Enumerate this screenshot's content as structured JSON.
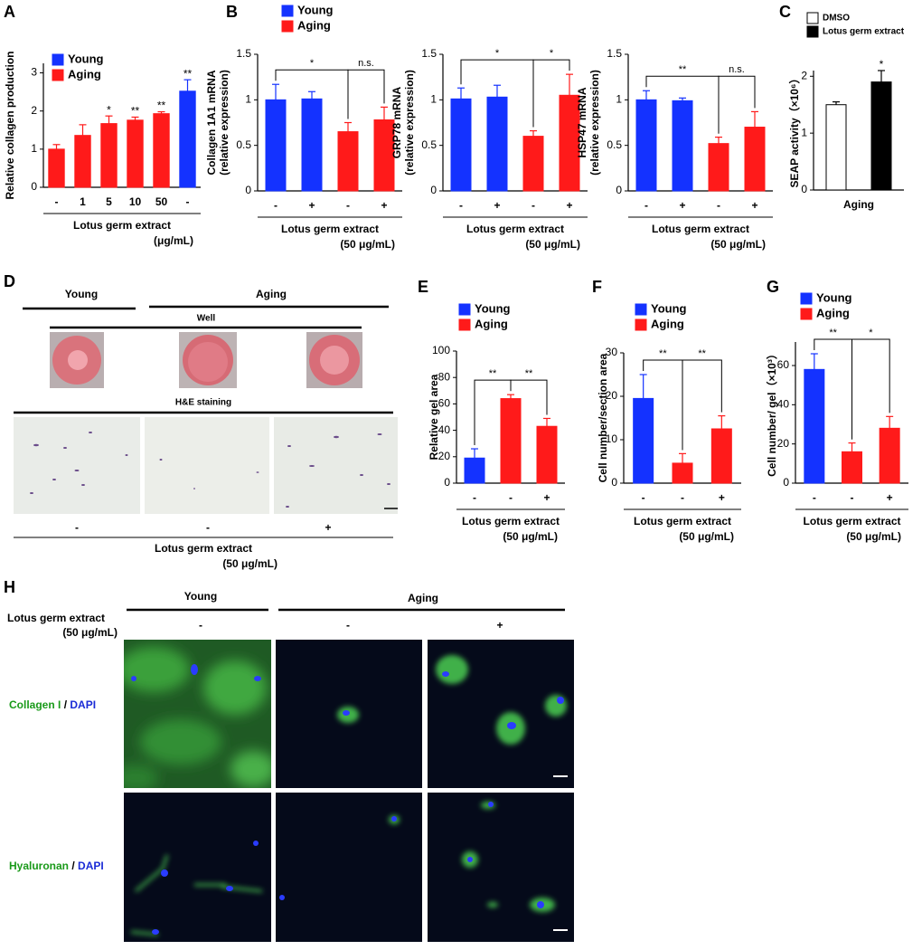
{
  "chart_data": [
    {
      "type": "bar",
      "panel": "A",
      "ylabel": "Relative collagen production",
      "xlabel": "Lotus germ extract",
      "xlabel_unit": "(μg/mL)",
      "categories": [
        "-",
        "1",
        "5",
        "10",
        "50",
        "-"
      ],
      "series": [
        {
          "name": "Young",
          "color": "#1432ff",
          "values": [
            null,
            null,
            null,
            null,
            null,
            2.52
          ],
          "errors": [
            null,
            null,
            null,
            null,
            null,
            0.3
          ],
          "sig": [
            null,
            null,
            null,
            null,
            null,
            "**"
          ]
        },
        {
          "name": "Aging",
          "color": "#ff1a1a",
          "values": [
            1.0,
            1.36,
            1.67,
            1.76,
            1.93,
            null
          ],
          "errors": [
            0.12,
            0.28,
            0.2,
            0.08,
            0.05,
            null
          ],
          "sig": [
            null,
            null,
            "*",
            "**",
            "**",
            null
          ]
        }
      ],
      "ylim": [
        0,
        3.25
      ],
      "yticks": [
        0,
        1,
        2,
        3
      ],
      "legend": "upper left"
    },
    {
      "type": "bar",
      "panel": "B",
      "ylabel": [
        "Collagen 1A1 mRNA",
        "(relative expression)"
      ],
      "xlabel": "Lotus germ extract",
      "xlabel_unit": "(50 μg/mL)",
      "categories": [
        "-",
        "+",
        "-",
        "+"
      ],
      "series": [
        {
          "name": "Young",
          "color": "#1432ff",
          "values": [
            1.0,
            1.01,
            null,
            null
          ],
          "errors": [
            0.17,
            0.08,
            null,
            null
          ]
        },
        {
          "name": "Aging",
          "color": "#ff1a1a",
          "values": [
            null,
            null,
            0.65,
            0.78
          ],
          "errors": [
            null,
            null,
            0.1,
            0.14
          ]
        }
      ],
      "ylim": [
        0,
        1.5
      ],
      "yticks": [
        0,
        0.5,
        1,
        1.5
      ],
      "comparisons": [
        {
          "from": 0,
          "to": 2,
          "label": "*"
        },
        {
          "from": 2,
          "to": 3,
          "label": "n.s."
        }
      ],
      "legend": "top"
    },
    {
      "type": "bar",
      "ylabel": [
        "GRP78  mRNA",
        "(relative expression)"
      ],
      "xlabel": "Lotus germ extract",
      "xlabel_unit": "(50 μg/mL)",
      "categories": [
        "-",
        "+",
        "-",
        "+"
      ],
      "series": [
        {
          "color": "#1432ff",
          "values": [
            1.01,
            1.03,
            null,
            null
          ],
          "errors": [
            0.12,
            0.13,
            null,
            null
          ]
        },
        {
          "color": "#ff1a1a",
          "values": [
            null,
            null,
            0.6,
            1.05
          ],
          "errors": [
            null,
            null,
            0.06,
            0.23
          ]
        }
      ],
      "ylim": [
        0,
        1.5
      ],
      "yticks": [
        0,
        0.5,
        1,
        1.5
      ],
      "comparisons": [
        {
          "from": 0,
          "to": 2,
          "label": "*"
        },
        {
          "from": 2,
          "to": 3,
          "label": "*"
        }
      ]
    },
    {
      "type": "bar",
      "ylabel": [
        "HSP47 mRNA",
        "(relative expression)"
      ],
      "xlabel": "Lotus germ extract",
      "xlabel_unit": "(50 μg/mL)",
      "categories": [
        "-",
        "+",
        "-",
        "+"
      ],
      "series": [
        {
          "color": "#1432ff",
          "values": [
            1.0,
            0.99,
            null,
            null
          ],
          "errors": [
            0.1,
            0.03,
            null,
            null
          ]
        },
        {
          "color": "#ff1a1a",
          "values": [
            null,
            null,
            0.52,
            0.7
          ],
          "errors": [
            null,
            null,
            0.07,
            0.17
          ]
        }
      ],
      "ylim": [
        0,
        1.5
      ],
      "yticks": [
        0,
        0.5,
        1,
        1.5
      ],
      "comparisons": [
        {
          "from": 0,
          "to": 2,
          "label": "**"
        },
        {
          "from": 2,
          "to": 3,
          "label": "n.s."
        }
      ]
    },
    {
      "type": "bar",
      "panel": "C",
      "ylabel": "SEAP activity（×10⁶）",
      "categories": [
        "Aging"
      ],
      "series": [
        {
          "name": "DMSO",
          "color": "#ffffff",
          "values": [
            1.5
          ],
          "errors": [
            0.05
          ]
        },
        {
          "name": "Lotus germ extract",
          "color": "#000000",
          "values": [
            1.9
          ],
          "errors": [
            0.2
          ],
          "sig": [
            "*"
          ]
        }
      ],
      "ylim": [
        0,
        2.1
      ],
      "yticks": [
        0,
        1,
        2
      ],
      "legend": "top"
    },
    {
      "type": "bar",
      "panel": "E",
      "ylabel": "Relative gel area",
      "xlabel": "Lotus germ extract",
      "xlabel_unit": "(50 μg/mL)",
      "categories": [
        "-",
        "-",
        "+"
      ],
      "series": [
        {
          "name": "Young",
          "color": "#1432ff",
          "values": [
            19,
            null,
            null
          ],
          "errors": [
            7,
            null,
            null
          ]
        },
        {
          "name": "Aging",
          "color": "#ff1a1a",
          "values": [
            null,
            64,
            43
          ],
          "errors": [
            null,
            3,
            6
          ]
        }
      ],
      "ylim": [
        0,
        100
      ],
      "yticks": [
        0,
        20,
        40,
        60,
        80,
        100
      ],
      "comparisons": [
        {
          "from": 0,
          "to": 1,
          "label": "**"
        },
        {
          "from": 1,
          "to": 2,
          "label": "**"
        }
      ],
      "legend": "top"
    },
    {
      "type": "bar",
      "panel": "F",
      "ylabel": "Cell number/section area",
      "xlabel": "Lotus germ extract",
      "xlabel_unit": "(50 μg/mL)",
      "categories": [
        "-",
        "-",
        "+"
      ],
      "series": [
        {
          "name": "Young",
          "color": "#1432ff",
          "values": [
            19.5,
            null,
            null
          ],
          "errors": [
            5.5,
            null,
            null
          ]
        },
        {
          "name": "Aging",
          "color": "#ff1a1a",
          "values": [
            null,
            4.6,
            12.5
          ],
          "errors": [
            null,
            2.2,
            3
          ]
        }
      ],
      "ylim": [
        0,
        30
      ],
      "yticks": [
        0,
        10,
        20,
        30
      ],
      "comparisons": [
        {
          "from": 0,
          "to": 1,
          "label": "**"
        },
        {
          "from": 1,
          "to": 2,
          "label": "**"
        }
      ],
      "legend": "top"
    },
    {
      "type": "bar",
      "panel": "G",
      "ylabel": "Cell number/ gel（×10³）",
      "xlabel": "Lotus germ extract",
      "xlabel_unit": "(50 μg/mL)",
      "categories": [
        "-",
        "-",
        "+"
      ],
      "series": [
        {
          "name": "Young",
          "color": "#1432ff",
          "values": [
            58,
            null,
            null
          ],
          "errors": [
            8,
            null,
            null
          ]
        },
        {
          "name": "Aging",
          "color": "#ff1a1a",
          "values": [
            null,
            16,
            28
          ],
          "errors": [
            null,
            4.5,
            6
          ]
        }
      ],
      "ylim": [
        0,
        72
      ],
      "yticks": [
        0,
        20,
        40,
        60
      ],
      "comparisons": [
        {
          "from": 0,
          "to": 1,
          "label": "**"
        },
        {
          "from": 1,
          "to": 2,
          "label": "*"
        }
      ],
      "legend": "top"
    }
  ],
  "panel_d": {
    "panel": "D",
    "groups": [
      "Young",
      "Aging"
    ],
    "well_title": "Well",
    "stain_title": "H&E staining",
    "treatments": [
      "-",
      "-",
      "+"
    ],
    "xlabel": "Lotus germ extract",
    "xlabel_unit": "(50 μg/mL)"
  },
  "panel_h": {
    "panel": "H",
    "groups": [
      "Young",
      "Aging"
    ],
    "treatment_label": "Lotus germ extract",
    "treatment_unit": "(50 μg/mL)",
    "treatments": [
      "-",
      "-",
      "+"
    ],
    "stains": [
      {
        "name": "Collagen I",
        "sep": "/",
        "counter": "DAPI"
      },
      {
        "name": "Hyaluronan",
        "sep": "/",
        "counter": "DAPI"
      }
    ]
  }
}
